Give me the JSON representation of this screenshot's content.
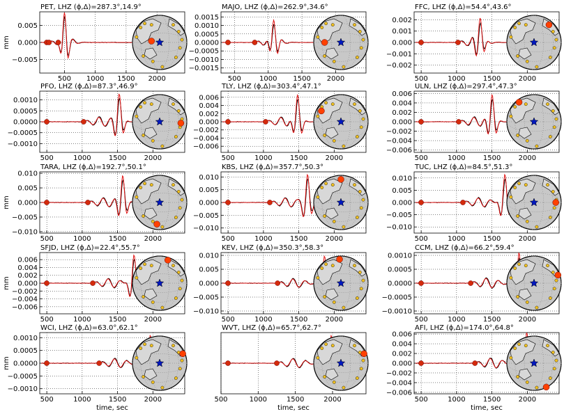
{
  "figure": {
    "colors": {
      "observed": "#000000",
      "synthetic": "#e01010",
      "arrival": "#d42a0c",
      "globe": "#c8c8c8",
      "station": "#f0c020",
      "station_highlight": "#ff4000",
      "event_star": "#0018c0"
    },
    "icons": {
      "event": "blue-star-icon",
      "station": "orange-circle-icon",
      "arrival": "red-dot-icon"
    }
  },
  "chart_data": [
    {
      "type": "line",
      "title": "PET, LHZ (ϕ,Δ)=287.3°,14.9°",
      "xlim": [
        100,
        2450
      ],
      "ylim": [
        -0.009,
        0.009
      ],
      "xticks": [
        "500",
        "1000",
        "1500",
        "2000"
      ],
      "yticks": [
        "0.005",
        "0.000",
        "−0.005"
      ],
      "ytick_values": [
        0.005,
        0.0,
        -0.005
      ],
      "ylabel": "mm",
      "xlabel": "",
      "series": [
        {
          "values": []
        },
        {
          "values": []
        }
      ],
      "arrivals": [
        {
          "t": 250,
          "y": 0
        },
        {
          "t": 400,
          "y": 0
        }
      ],
      "waveform_center": 500,
      "waveform_amp": 0.0085,
      "globe_station": [
        -0.3,
        -0.05
      ]
    },
    {
      "type": "line",
      "title": "MAJO, LHZ (ϕ,Δ)=262.9°,34.6°",
      "xlim": [
        300,
        2450
      ],
      "ylim": [
        -0.0018,
        0.0018
      ],
      "xticks": [
        "500",
        "1000",
        "1500",
        "2000"
      ],
      "yticks": [
        "0.0015",
        "0.0010",
        "0.0005",
        "0.0000",
        "−0.0005",
        "−0.0010",
        "−0.0015"
      ],
      "ytick_values": [
        0.0015,
        0.001,
        0.0005,
        0,
        -0.0005,
        -0.001,
        -0.0015
      ],
      "ylabel": "",
      "xlabel": "",
      "series": [
        {
          "values": []
        },
        {
          "values": []
        }
      ],
      "arrivals": [
        {
          "t": 800,
          "y": 0
        }
      ],
      "waveform_center": 1080,
      "waveform_amp": 0.0015,
      "globe_station": [
        -0.6,
        0.0
      ]
    },
    {
      "type": "line",
      "title": "FFC, LHZ (ϕ,Δ)=54.4°,43.6°",
      "xlim": [
        400,
        2450
      ],
      "ylim": [
        -0.0027,
        0.0027
      ],
      "xticks": [
        "500",
        "1000",
        "1500",
        "2000"
      ],
      "yticks": [
        "0.002",
        "0.001",
        "0.000",
        "−0.001",
        "−0.002"
      ],
      "ytick_values": [
        0.002,
        0.001,
        0,
        -0.001,
        -0.002
      ],
      "ylabel": "",
      "xlabel": "",
      "series": [
        {
          "values": []
        },
        {
          "values": []
        }
      ],
      "arrivals": [
        {
          "t": 1020,
          "y": 0
        }
      ],
      "waveform_center": 1330,
      "waveform_amp": 0.0025,
      "globe_station": [
        0.55,
        -0.65
      ]
    },
    {
      "type": "line",
      "title": "PFO, LHZ (ϕ,Δ)=87.3°,46.9°",
      "xlim": [
        400,
        2450
      ],
      "ylim": [
        -0.0014,
        0.0014
      ],
      "xticks": [
        "500",
        "1000",
        "1500",
        "2000"
      ],
      "yticks": [
        "0.0010",
        "0.0005",
        "0.0000",
        "−0.0005",
        "−0.0010"
      ],
      "ytick_values": [
        0.001,
        0.0005,
        0,
        -0.0005,
        -0.001
      ],
      "ylabel": "",
      "xlabel": "",
      "series": [
        {
          "values": []
        },
        {
          "values": []
        }
      ],
      "arrivals": [
        {
          "t": 1020,
          "y": 0
        }
      ],
      "waveform_center": 1520,
      "waveform_amp": 0.0013,
      "globe_station": [
        0.78,
        0.05
      ]
    },
    {
      "type": "line",
      "title": "TLY, LHZ (ϕ,Δ)=303.4°,47.1°",
      "xlim": [
        400,
        2450
      ],
      "ylim": [
        -0.0075,
        0.0075
      ],
      "xticks": [
        "500",
        "1000",
        "1500",
        "2000"
      ],
      "yticks": [
        "0.006",
        "0.004",
        "0.002",
        "0.000",
        "−0.002",
        "−0.004",
        "−0.006"
      ],
      "ytick_values": [
        0.006,
        0.004,
        0.002,
        0,
        -0.002,
        -0.004,
        -0.006
      ],
      "ylabel": "",
      "xlabel": "",
      "series": [
        {
          "values": []
        },
        {
          "values": []
        }
      ],
      "arrivals": [
        {
          "t": 1030,
          "y": 0
        }
      ],
      "waveform_center": 1480,
      "waveform_amp": 0.0068,
      "globe_station": [
        -0.72,
        -0.4
      ]
    },
    {
      "type": "line",
      "title": "ULN, LHZ (ϕ,Δ)=297.4°,47.3°",
      "xlim": [
        400,
        2450
      ],
      "ylim": [
        -0.0065,
        0.0065
      ],
      "xticks": [
        "500",
        "1000",
        "1500",
        "2000"
      ],
      "yticks": [
        "0.006",
        "0.004",
        "0.002",
        "0.000",
        "−0.002",
        "−0.004",
        "−0.006"
      ],
      "ytick_values": [
        0.006,
        0.004,
        0.002,
        0,
        -0.002,
        -0.004,
        -0.006
      ],
      "ylabel": "",
      "xlabel": "",
      "series": [
        {
          "values": []
        },
        {
          "values": []
        }
      ],
      "arrivals": [
        {
          "t": 1030,
          "y": 0
        }
      ],
      "waveform_center": 1500,
      "waveform_amp": 0.006,
      "globe_station": [
        -0.55,
        -0.72
      ]
    },
    {
      "type": "line",
      "title": "TARA, LHZ (ϕ,Δ)=192.7°,50.1°",
      "xlim": [
        400,
        2450
      ],
      "ylim": [
        -0.0105,
        0.0105
      ],
      "xticks": [
        "500",
        "1000",
        "1500",
        "2000"
      ],
      "yticks": [
        "0.010",
        "0.005",
        "0.000",
        "−0.005",
        "−0.010"
      ],
      "ytick_values": [
        0.01,
        0.005,
        0,
        -0.005,
        -0.01
      ],
      "ylabel": "mm",
      "xlabel": "",
      "series": [
        {
          "values": []
        },
        {
          "values": []
        }
      ],
      "arrivals": [
        {
          "t": 1080,
          "y": 0
        }
      ],
      "waveform_center": 1570,
      "waveform_amp": 0.0095,
      "globe_station": [
        -0.1,
        0.8
      ]
    },
    {
      "type": "line",
      "title": "KBS, LHZ (ϕ,Δ)=357.7°,50.3°",
      "xlim": [
        400,
        2450
      ],
      "ylim": [
        -0.012,
        0.012
      ],
      "xticks": [
        "500",
        "1000",
        "1500",
        "2000"
      ],
      "yticks": [
        "0.010",
        "0.005",
        "0.000",
        "−0.005",
        "−0.010"
      ],
      "ytick_values": [
        0.01,
        0.005,
        0,
        -0.005,
        -0.01
      ],
      "ylabel": "",
      "xlabel": "",
      "series": [
        {
          "values": []
        },
        {
          "values": []
        }
      ],
      "arrivals": [
        {
          "t": 1090,
          "y": 0
        }
      ],
      "waveform_center": 1620,
      "waveform_amp": 0.011,
      "globe_station": [
        0.0,
        -0.85
      ]
    },
    {
      "type": "line",
      "title": "TUC, LHZ (ϕ,Δ)=84.5°,51.3°",
      "xlim": [
        400,
        2450
      ],
      "ylim": [
        -0.0125,
        0.0125
      ],
      "xticks": [
        "500",
        "1000",
        "1500",
        "2000"
      ],
      "yticks": [
        "0.010",
        "0.005",
        "0.000",
        "−0.005",
        "−0.010"
      ],
      "ytick_values": [
        0.01,
        0.005,
        0,
        -0.005,
        -0.01
      ],
      "ylabel": "",
      "xlabel": "",
      "series": [
        {
          "values": []
        },
        {
          "values": []
        }
      ],
      "arrivals": [
        {
          "t": 1090,
          "y": 0
        }
      ],
      "waveform_center": 1680,
      "waveform_amp": 0.0115,
      "globe_station": [
        0.8,
        0.0
      ]
    },
    {
      "type": "line",
      "title": "SFJD, LHZ (ϕ,Δ)=22.4°,55.7°",
      "xlim": [
        400,
        2450
      ],
      "ylim": [
        -0.0078,
        0.0078
      ],
      "xticks": [
        "500",
        "1000",
        "1500",
        "2000"
      ],
      "yticks": [
        "0.006",
        "0.004",
        "0.002",
        "0.000",
        "−0.002",
        "−0.004",
        "−0.006"
      ],
      "ytick_values": [
        0.006,
        0.004,
        0.002,
        0,
        -0.002,
        -0.004,
        -0.006
      ],
      "ylabel": "mm",
      "xlabel": "",
      "series": [
        {
          "values": []
        },
        {
          "values": []
        }
      ],
      "arrivals": [
        {
          "t": 1150,
          "y": 0
        }
      ],
      "waveform_center": 1730,
      "waveform_amp": 0.0072,
      "globe_station": [
        0.3,
        -0.85
      ]
    },
    {
      "type": "line",
      "title": "KEV, LHZ (ϕ,Δ)=350.3°,58.3°",
      "xlim": [
        400,
        2450
      ],
      "ylim": [
        -0.011,
        0.011
      ],
      "xticks": [
        "500",
        "1000",
        "1500",
        "2000"
      ],
      "yticks": [
        "0.010",
        "0.005",
        "0.000",
        "−0.005",
        "−0.010"
      ],
      "ytick_values": [
        0.01,
        0.005,
        0,
        -0.005,
        -0.01
      ],
      "ylabel": "",
      "xlabel": "",
      "series": [
        {
          "values": []
        },
        {
          "values": []
        }
      ],
      "arrivals": [
        {
          "t": 1200,
          "y": 0
        }
      ],
      "waveform_center": 1860,
      "waveform_amp": 0.0098,
      "globe_station": [
        -0.05,
        -0.88
      ]
    },
    {
      "type": "line",
      "title": "CCM, LHZ (ϕ,Δ)=66.2°,59.4°",
      "xlim": [
        400,
        2450
      ],
      "ylim": [
        -0.0011,
        0.0011
      ],
      "xticks": [
        "500",
        "1000",
        "1500",
        "2000"
      ],
      "yticks": [
        "0.0010",
        "0.0005",
        "0.0000",
        "−0.0005",
        "−0.0010"
      ],
      "ytick_values": [
        0.001,
        0.0005,
        0,
        -0.0005,
        -0.001
      ],
      "ylabel": "",
      "xlabel": "",
      "series": [
        {
          "values": []
        },
        {
          "values": []
        }
      ],
      "arrivals": [
        {
          "t": 1200,
          "y": 0
        }
      ],
      "waveform_center": 1880,
      "waveform_amp": 0.0011,
      "globe_station": [
        0.88,
        -0.3
      ]
    },
    {
      "type": "line",
      "title": "WCI, LHZ (ϕ,Δ)=63.0°,62.1°",
      "xlim": [
        400,
        2450
      ],
      "ylim": [
        -0.0012,
        0.0012
      ],
      "xticks": [
        "500",
        "1000",
        "1500",
        "2000"
      ],
      "yticks": [
        "0.0010",
        "0.0005",
        "0.0000",
        "−0.0005",
        "−0.0010"
      ],
      "ytick_values": [
        0.001,
        0.0005,
        0,
        -0.0005,
        -0.001
      ],
      "ylabel": "mm",
      "xlabel": "time, sec",
      "series": [
        {
          "values": []
        },
        {
          "values": []
        }
      ],
      "arrivals": [
        {
          "t": 1240,
          "y": 0
        }
      ],
      "waveform_center": 1960,
      "waveform_amp": 0.0011,
      "globe_station": [
        0.85,
        -0.35
      ]
    },
    {
      "type": "line",
      "title": "WVT, LHZ (ϕ,Δ)=65.7°,62.7°",
      "xlim": [
        500,
        2450
      ],
      "ylim": [
        -0.0012,
        0.0012
      ],
      "xticks": [
        "500",
        "1000",
        "1500",
        "2000"
      ],
      "yticks": [],
      "ytick_values": [],
      "ylabel": "",
      "xlabel": "time, sec",
      "series": [
        {
          "values": []
        },
        {
          "values": []
        }
      ],
      "arrivals": [
        {
          "t": 1250,
          "y": 0
        }
      ],
      "waveform_center": 1980,
      "waveform_amp": 0.0011,
      "globe_station": [
        0.85,
        -0.35
      ]
    },
    {
      "type": "line",
      "title": "AFI, LHZ (ϕ,Δ)=174.0°,64.8°",
      "xlim": [
        400,
        2450
      ],
      "ylim": [
        -0.0063,
        0.0063
      ],
      "xticks": [
        "500",
        "1000",
        "1500",
        "2000"
      ],
      "yticks": [
        "0.006",
        "0.004",
        "0.002",
        "0.000",
        "−0.002",
        "−0.004",
        "−0.006"
      ],
      "ytick_values": [
        0.006,
        0.004,
        0.002,
        0,
        -0.002,
        -0.004,
        -0.006
      ],
      "ylabel": "",
      "xlabel": "time, sec",
      "series": [
        {
          "values": []
        },
        {
          "values": []
        }
      ],
      "arrivals": [
        {
          "t": 1260,
          "y": 0
        }
      ],
      "waveform_center": 1990,
      "waveform_amp": 0.0063,
      "globe_station": [
        0.45,
        0.88
      ]
    }
  ]
}
